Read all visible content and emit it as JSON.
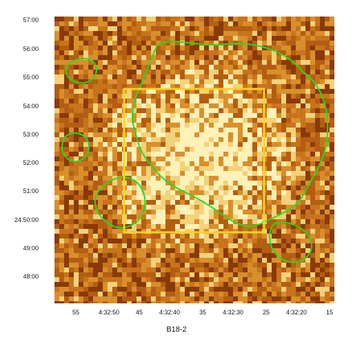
{
  "figure": {
    "caption": "B18-2",
    "y_ticks": [
      "57:00",
      "56:00",
      "55:00",
      "54:00",
      "53:00",
      "52:00",
      "51:00",
      "24:50:00",
      "49:00",
      "48:00"
    ],
    "x_ticks": [
      "55",
      "4:32:50",
      "45",
      "4:32:40",
      "35",
      "4:32:30",
      "25",
      "4:32:20",
      "15"
    ],
    "colors": {
      "contour": "#22dd22",
      "box": "#ffd21a",
      "bg_dark": "#8a3a08",
      "bg_mid": "#c8741c",
      "bg_light": "#f2d27a"
    }
  }
}
